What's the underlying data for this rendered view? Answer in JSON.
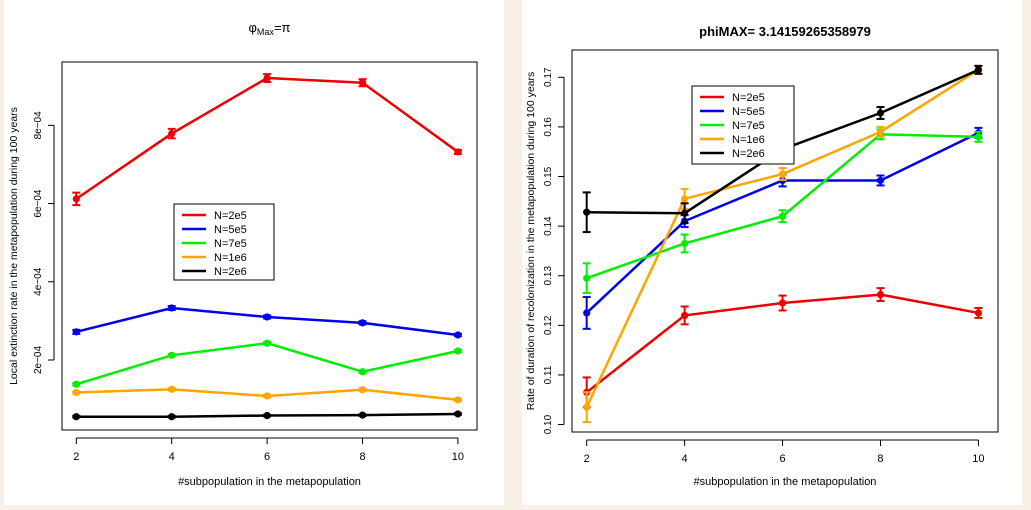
{
  "chart_data": [
    {
      "type": "line",
      "title": "φMax=π",
      "title_main": "φ",
      "title_sub": "Max",
      "title_tail": "=π",
      "xlabel": "#subpopulation in the metapopulation",
      "ylabel": "Local extinction rate in the metapopulation during 100 years",
      "x": [
        2,
        4,
        6,
        8,
        10
      ],
      "xlim": [
        1.7,
        10.4
      ],
      "ylim": [
        2.1e-05,
        0.000962
      ],
      "y_ticks": [
        0.0002,
        0.0004,
        0.0006,
        0.0008
      ],
      "y_tick_labels": [
        "2e−04",
        "4e−04",
        "6e−04",
        "8e−04"
      ],
      "x_ticks": [
        2,
        4,
        6,
        8,
        10
      ],
      "x_tick_labels": [
        "2",
        "4",
        "6",
        "8",
        "10"
      ],
      "grid": false,
      "legend_position": "center-left",
      "series": [
        {
          "name": "N=2e5",
          "color": "#ee0000",
          "values": [
            0.000612,
            0.000779,
            0.000921,
            0.000909,
            0.000732
          ],
          "errors": [
            1.6e-05,
            1.2e-05,
            1e-05,
            9e-06,
            5e-06
          ]
        },
        {
          "name": "N=5e5",
          "color": "#0000ee",
          "values": [
            0.000272,
            0.000333,
            0.00031,
            0.000295,
            0.000264
          ],
          "errors": [
            5e-06,
            5e-06,
            4e-06,
            4e-06,
            3e-06
          ]
        },
        {
          "name": "N=7e5",
          "color": "#00ee00",
          "values": [
            0.000138,
            0.000212,
            0.000243,
            0.00017,
            0.000223
          ],
          "errors": [
            3e-06,
            3e-06,
            3e-06,
            3e-06,
            3e-06
          ]
        },
        {
          "name": "N=1e6",
          "color": "#ffa500",
          "values": [
            0.000117,
            0.000125,
            0.000108,
            0.000124,
            9.8e-05
          ],
          "errors": [
            3e-06,
            3e-06,
            3e-06,
            3e-06,
            3e-06
          ]
        },
        {
          "name": "N=2e6",
          "color": "#000000",
          "values": [
            5.5e-05,
            5.5e-05,
            5.8e-05,
            5.9e-05,
            6.2e-05
          ],
          "errors": [
            2e-06,
            2e-06,
            2e-06,
            2e-06,
            2e-06
          ]
        }
      ]
    },
    {
      "type": "line",
      "title": "phiMAX= 3.14159265358979",
      "xlabel": "#subpopulation in the metapopulation",
      "ylabel": "Rate of duration of recolonization in the metapopulation during 100 years",
      "x": [
        2,
        4,
        6,
        8,
        10
      ],
      "xlim": [
        1.7,
        10.4
      ],
      "ylim": [
        0.0985,
        0.1755
      ],
      "y_ticks": [
        0.1,
        0.11,
        0.12,
        0.13,
        0.14,
        0.15,
        0.16,
        0.17
      ],
      "y_tick_labels": [
        "0.10",
        "0.11",
        "0.12",
        "0.13",
        "0.14",
        "0.15",
        "0.16",
        "0.17"
      ],
      "x_ticks": [
        2,
        4,
        6,
        8,
        10
      ],
      "x_tick_labels": [
        "2",
        "4",
        "6",
        "8",
        "10"
      ],
      "grid": false,
      "legend_position": "top-left",
      "series": [
        {
          "name": "N=2e5",
          "color": "#ee0000",
          "values": [
            0.1065,
            0.122,
            0.1245,
            0.1262,
            0.1225
          ],
          "errors": [
            0.003,
            0.0018,
            0.0015,
            0.0013,
            0.001
          ]
        },
        {
          "name": "N=5e5",
          "color": "#0000ee",
          "values": [
            0.1225,
            0.141,
            0.1492,
            0.1492,
            0.1588
          ],
          "errors": [
            0.0032,
            0.0012,
            0.0012,
            0.001,
            0.001
          ]
        },
        {
          "name": "N=7e5",
          "color": "#00ee00",
          "values": [
            0.1295,
            0.1365,
            0.142,
            0.1585,
            0.158
          ],
          "errors": [
            0.003,
            0.0018,
            0.0012,
            0.001,
            0.001
          ]
        },
        {
          "name": "N=1e6",
          "color": "#ffa500",
          "values": [
            0.1035,
            0.1455,
            0.1505,
            0.159,
            0.1715
          ],
          "errors": [
            0.003,
            0.002,
            0.0012,
            0.001,
            0.0008
          ]
        },
        {
          "name": "N=2e6",
          "color": "#000000",
          "values": [
            0.1428,
            0.1426,
            0.1555,
            0.1628,
            0.1715
          ],
          "errors": [
            0.004,
            0.002,
            0.0015,
            0.0012,
            0.0008
          ]
        }
      ]
    }
  ]
}
